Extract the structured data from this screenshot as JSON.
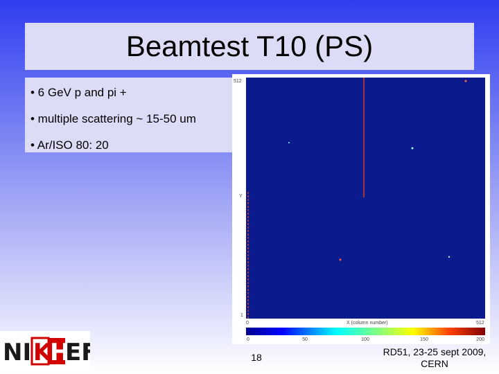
{
  "title": "Beamtest T10 (PS)",
  "bullets": [
    "• 6 GeV p and pi +",
    "• multiple scattering ~ 15-50 um",
    "• Ar/ISO 80: 20"
  ],
  "image": {
    "y_max": "512",
    "y_label": "Y",
    "y_min": "1",
    "x_min": "0",
    "x_label": "X (column number)",
    "x_max": "512",
    "colorbar_ticks": [
      "0",
      "50",
      "100",
      "150",
      "200"
    ]
  },
  "logo": {
    "parts": [
      "NI",
      "K",
      "H",
      "EF"
    ]
  },
  "footer": {
    "page_number": "18",
    "event": "RD51, 23-25 sept 2009,",
    "location": "CERN"
  }
}
